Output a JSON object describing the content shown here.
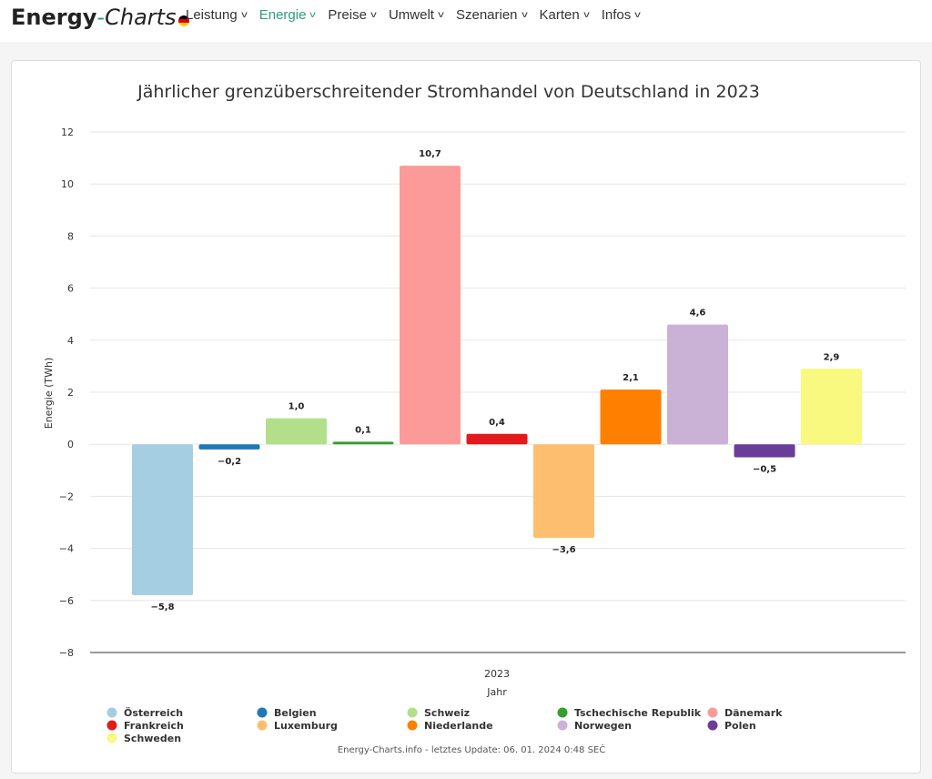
{
  "brand": {
    "part1": "Energy",
    "dash": "-",
    "part2": "Charts"
  },
  "nav": {
    "items": [
      {
        "label": "Leistung",
        "active": false
      },
      {
        "label": "Energie",
        "active": true
      },
      {
        "label": "Preise",
        "active": false
      },
      {
        "label": "Umwelt",
        "active": false
      },
      {
        "label": "Szenarien",
        "active": false
      },
      {
        "label": "Karten",
        "active": false
      },
      {
        "label": "Infos",
        "active": false
      }
    ]
  },
  "chart_data": {
    "type": "bar",
    "title": "Jährlicher grenzüberschreitender Stromhandel von Deutschland in 2023",
    "xlabel": "Jahr",
    "ylabel": "Energie (TWh)",
    "categories": [
      "2023"
    ],
    "ylim": [
      -8,
      12
    ],
    "yticks": [
      "12",
      "10",
      "8",
      "6",
      "4",
      "2",
      "0",
      "−2",
      "−4",
      "−6",
      "−8"
    ],
    "ytick_values": [
      12,
      10,
      8,
      6,
      4,
      2,
      0,
      -2,
      -4,
      -6,
      -8
    ],
    "grid": true,
    "legend_position": "bottom",
    "series": [
      {
        "name": "Österreich",
        "value": -5.8,
        "label": "−5,8",
        "color": "#a6cee3"
      },
      {
        "name": "Belgien",
        "value": -0.2,
        "label": "−0,2",
        "color": "#1f78b4"
      },
      {
        "name": "Schweiz",
        "value": 1.0,
        "label": "1,0",
        "color": "#b2df8a"
      },
      {
        "name": "Tschechische Republik",
        "value": 0.1,
        "label": "0,1",
        "color": "#33a02c"
      },
      {
        "name": "Dänemark",
        "value": 10.7,
        "label": "10,7",
        "color": "#fb9a99"
      },
      {
        "name": "Frankreich",
        "value": 0.4,
        "label": "0,4",
        "color": "#e31a1c"
      },
      {
        "name": "Luxemburg",
        "value": -3.6,
        "label": "−3,6",
        "color": "#fdbf6f"
      },
      {
        "name": "Niederlande",
        "value": 2.1,
        "label": "2,1",
        "color": "#ff7f00"
      },
      {
        "name": "Norwegen",
        "value": 4.6,
        "label": "4,6",
        "color": "#cab2d6"
      },
      {
        "name": "Polen",
        "value": -0.5,
        "label": "−0,5",
        "color": "#6a3d9a"
      },
      {
        "name": "Schweden",
        "value": 2.9,
        "label": "2,9",
        "color": "#f9f97f"
      }
    ],
    "credit": "Energy-Charts.info - letztes Update: 06. 01. 2024 0:48 SEČ"
  }
}
